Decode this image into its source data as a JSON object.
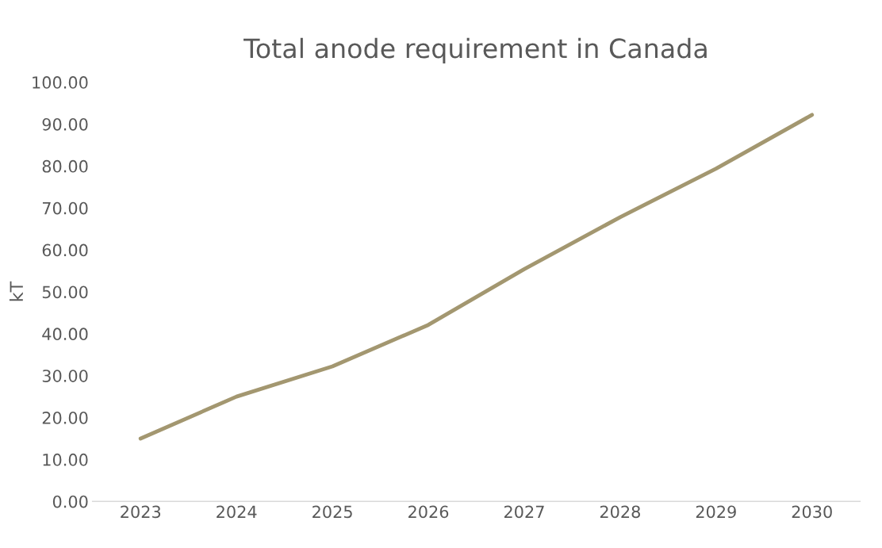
{
  "chart_data": {
    "type": "line",
    "title": "Total anode requirement in Canada",
    "ylabel": "kT",
    "categories": [
      "2023",
      "2024",
      "2025",
      "2026",
      "2027",
      "2028",
      "2029",
      "2030"
    ],
    "series": [
      {
        "color": "#a39770",
        "values": [
          15.0,
          25.0,
          32.2,
          42.1,
          55.4,
          67.8,
          79.4,
          92.2
        ]
      }
    ],
    "ylim": [
      0,
      100
    ],
    "yticks": [
      {
        "value": 0,
        "label": "0.00"
      },
      {
        "value": 10,
        "label": "10.00"
      },
      {
        "value": 20,
        "label": "20.00"
      },
      {
        "value": 30,
        "label": "30.00"
      },
      {
        "value": 40,
        "label": "40.00"
      },
      {
        "value": 50,
        "label": "50.00"
      },
      {
        "value": 60,
        "label": "60.00"
      },
      {
        "value": 70,
        "label": "70.00"
      },
      {
        "value": 80,
        "label": "80.00"
      },
      {
        "value": 90,
        "label": "90.00"
      },
      {
        "value": 100,
        "label": "100.00"
      }
    ],
    "grid": false
  }
}
